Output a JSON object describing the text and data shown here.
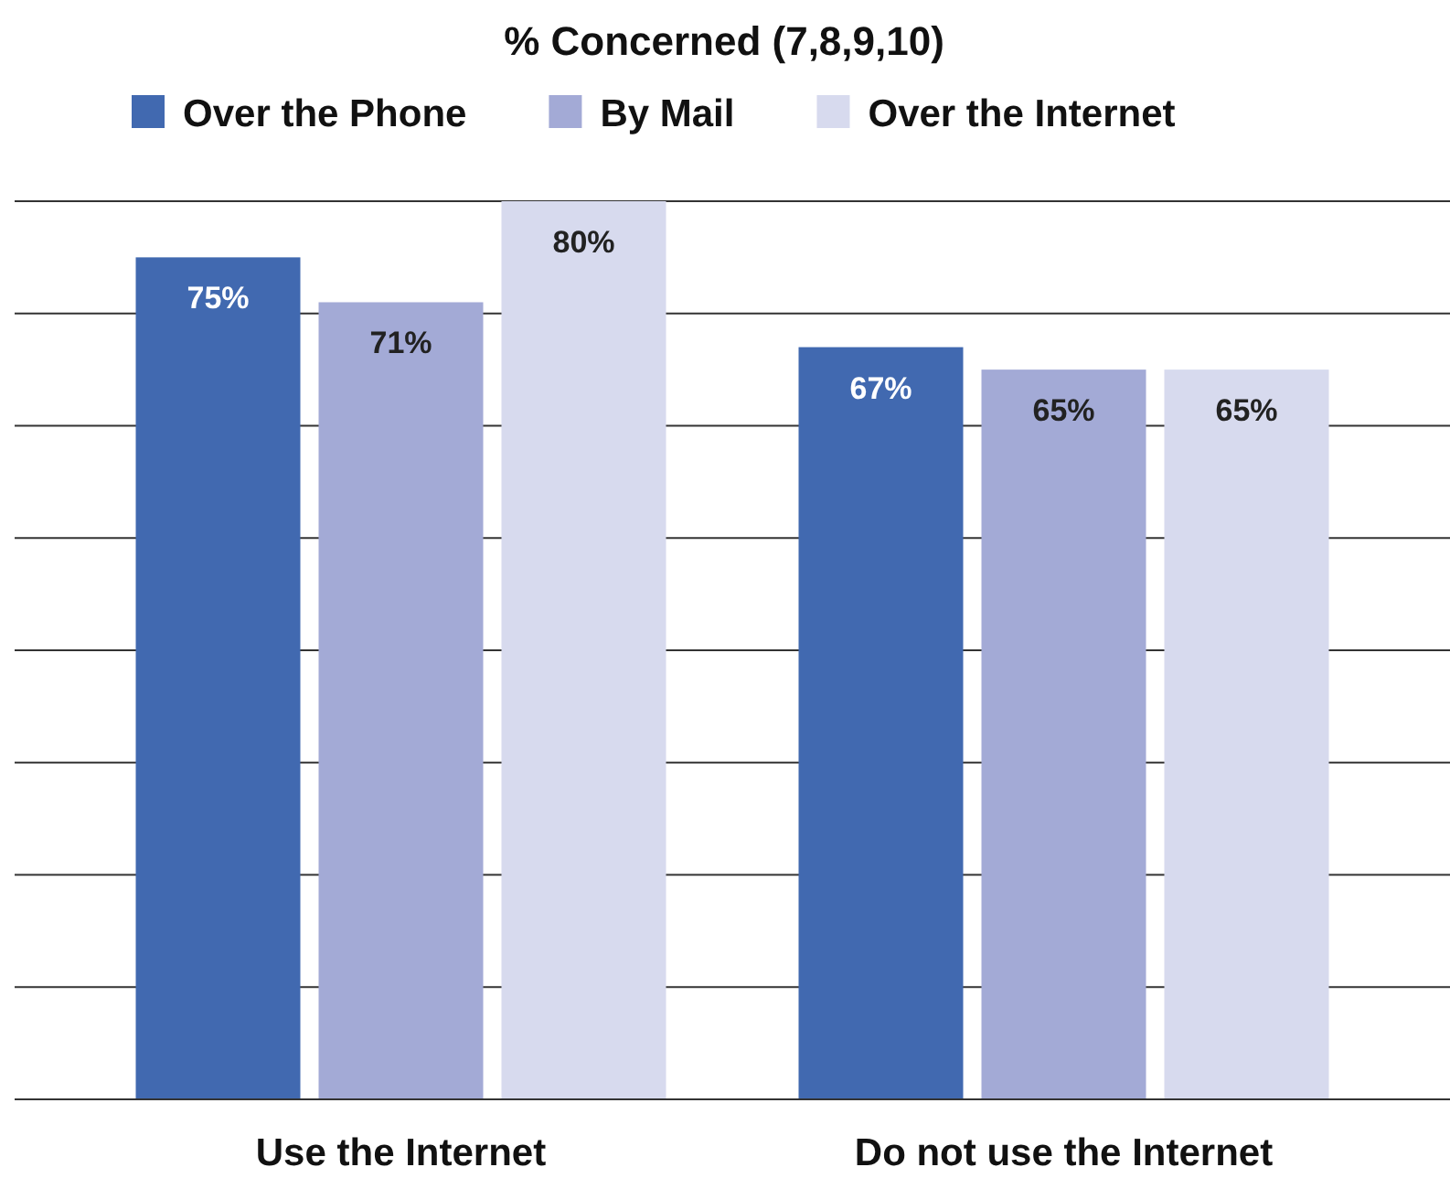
{
  "chart_data": {
    "type": "bar",
    "title": "% Concerned (7,8,9,10)",
    "categories": [
      "Use the Internet",
      "Do not use the Internet"
    ],
    "series": [
      {
        "name": "Over the Phone",
        "color": "#4169b0",
        "values": [
          75,
          67
        ],
        "value_labels": [
          "75%",
          "67%"
        ]
      },
      {
        "name": "By Mail",
        "color": "#a3aad6",
        "values": [
          71,
          65
        ],
        "value_labels": [
          "71%",
          "65%"
        ]
      },
      {
        "name": "Over the Internet",
        "color": "#d7daee",
        "values": [
          80,
          65
        ],
        "value_labels": [
          "80%",
          "65%"
        ]
      }
    ],
    "ylim": [
      0,
      80
    ],
    "yticks": [
      {
        "value": 0,
        "label": null
      },
      {
        "value": 10,
        "label": null
      },
      {
        "value": 20,
        "label": null
      },
      {
        "value": 30,
        "label": null
      },
      {
        "value": 40,
        "label": null
      },
      {
        "value": 50,
        "label": null
      },
      {
        "value": 60,
        "label": null
      },
      {
        "value": 70,
        "label": null
      },
      {
        "value": 80,
        "label": null
      }
    ],
    "grid": "y",
    "legend": "top",
    "tick_labels": "x"
  }
}
